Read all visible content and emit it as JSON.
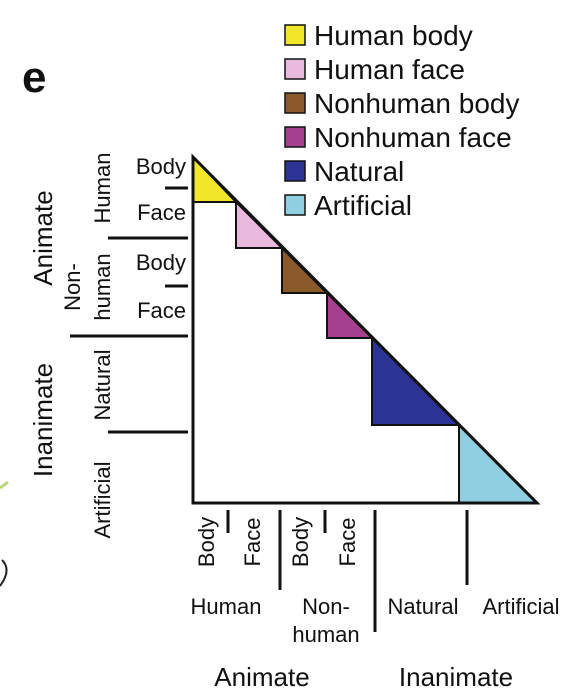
{
  "panel_letter": "e",
  "legend": [
    {
      "label": "Human body",
      "color": "#f2e62a"
    },
    {
      "label": "Human face",
      "color": "#e8b9dd"
    },
    {
      "label": "Nonhuman body",
      "color": "#8b5a2b"
    },
    {
      "label": "Nonhuman face",
      "color": "#a5408f"
    },
    {
      "label": "Natural",
      "color": "#2b3494"
    },
    {
      "label": "Artificial",
      "color": "#8fcfdf"
    }
  ],
  "left_axis": {
    "animate": "Animate",
    "inanimate": "Inanimate",
    "human": "Human",
    "nonhuman": [
      "Non-",
      "human"
    ],
    "natural": "Natural",
    "artificial": "Artificial",
    "body1": "Body",
    "face1": "Face",
    "body2": "Body",
    "face2": "Face"
  },
  "bottom_axis": {
    "body1": "Body",
    "face1": "Face",
    "body2": "Body",
    "face2": "Face",
    "human": "Human",
    "nonhuman": [
      "Non-",
      "human"
    ],
    "natural": "Natural",
    "artificial": "Artificial",
    "animate": "Animate",
    "inanimate": "Inanimate"
  }
}
